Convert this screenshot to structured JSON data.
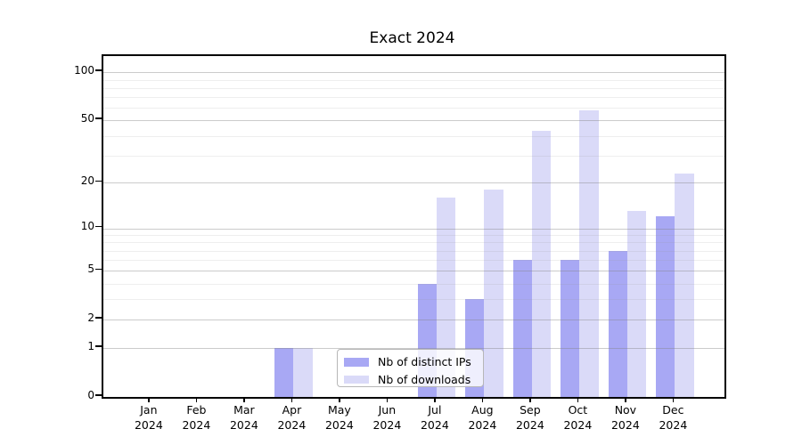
{
  "title": "Exact 2024",
  "chart_data": {
    "type": "bar",
    "title": "Exact 2024",
    "categories": [
      {
        "month": "Jan",
        "year": "2024"
      },
      {
        "month": "Feb",
        "year": "2024"
      },
      {
        "month": "Mar",
        "year": "2024"
      },
      {
        "month": "Apr",
        "year": "2024"
      },
      {
        "month": "May",
        "year": "2024"
      },
      {
        "month": "Jun",
        "year": "2024"
      },
      {
        "month": "Jul",
        "year": "2024"
      },
      {
        "month": "Aug",
        "year": "2024"
      },
      {
        "month": "Sep",
        "year": "2024"
      },
      {
        "month": "Oct",
        "year": "2024"
      },
      {
        "month": "Nov",
        "year": "2024"
      },
      {
        "month": "Dec",
        "year": "2024"
      }
    ],
    "series": [
      {
        "name": "Nb of distinct IPs",
        "color": "#a8a8f4",
        "values": [
          0,
          0,
          0,
          1,
          0,
          0,
          4,
          3,
          6,
          6,
          7,
          12
        ]
      },
      {
        "name": "Nb of downloads",
        "color": "#dadaf8",
        "values": [
          0,
          0,
          0,
          1,
          0,
          0,
          16,
          18,
          43,
          58,
          13,
          23
        ]
      }
    ],
    "xlabel": "",
    "ylabel": "",
    "yscale": "log1p",
    "y_ticks": [
      0,
      1,
      2,
      5,
      10,
      20,
      50,
      100
    ],
    "y_minor_ticks": [
      3,
      4,
      6,
      7,
      8,
      9,
      30,
      40,
      60,
      70,
      80,
      90
    ],
    "ylim": [
      0,
      128
    ],
    "grid": true,
    "legend_position": "lower center"
  },
  "colors": {
    "major_grid": "#c6c6c6",
    "minor_grid": "#ececec",
    "spine": "#000000",
    "legend_border": "#b7b7b7",
    "text": "#000000"
  }
}
